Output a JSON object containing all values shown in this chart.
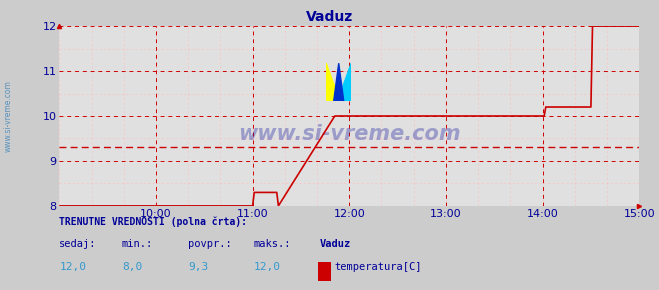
{
  "title": "Vaduz",
  "title_color": "#000099",
  "title_fontsize": 10,
  "bg_color": "#cccccc",
  "plot_bg_color": "#e0e0e0",
  "grid_color_major": "#cc0000",
  "grid_color_minor": "#ffbbbb",
  "line_color": "#cc0000",
  "avg_line_color": "#cc0000",
  "avg_value": 9.3,
  "ylim": [
    8.0,
    12.0
  ],
  "yticks": [
    8,
    9,
    10,
    11,
    12
  ],
  "xlim_start": 540,
  "xlim_end": 900,
  "xtick_positions": [
    600,
    660,
    720,
    780,
    840,
    900
  ],
  "xtick_labels": [
    "10:00",
    "11:00",
    "12:00",
    "13:00",
    "14:00",
    "15:00"
  ],
  "tick_color": "#000099",
  "watermark_text": "www.si-vreme.com",
  "watermark_color": "#000099",
  "left_label": "www.si-vreme.com",
  "footer_line1": "TRENUTNE VREDNOSTI (polna črta):",
  "footer_labels": [
    "sedaj:",
    "min.:",
    "povpr.:",
    "maks.:"
  ],
  "footer_values": [
    "12,0",
    "8,0",
    "9,3",
    "12,0"
  ],
  "footer_station": "Vaduz",
  "footer_legend": "temperatura[C]",
  "footer_legend_color": "#cc0000",
  "data_x": [
    540,
    660,
    661,
    675,
    676,
    711,
    712,
    841,
    842,
    870,
    871,
    900
  ],
  "data_y": [
    8.0,
    8.0,
    8.3,
    8.3,
    8.0,
    10.0,
    10.0,
    10.0,
    10.2,
    10.2,
    12.0,
    12.0
  ]
}
